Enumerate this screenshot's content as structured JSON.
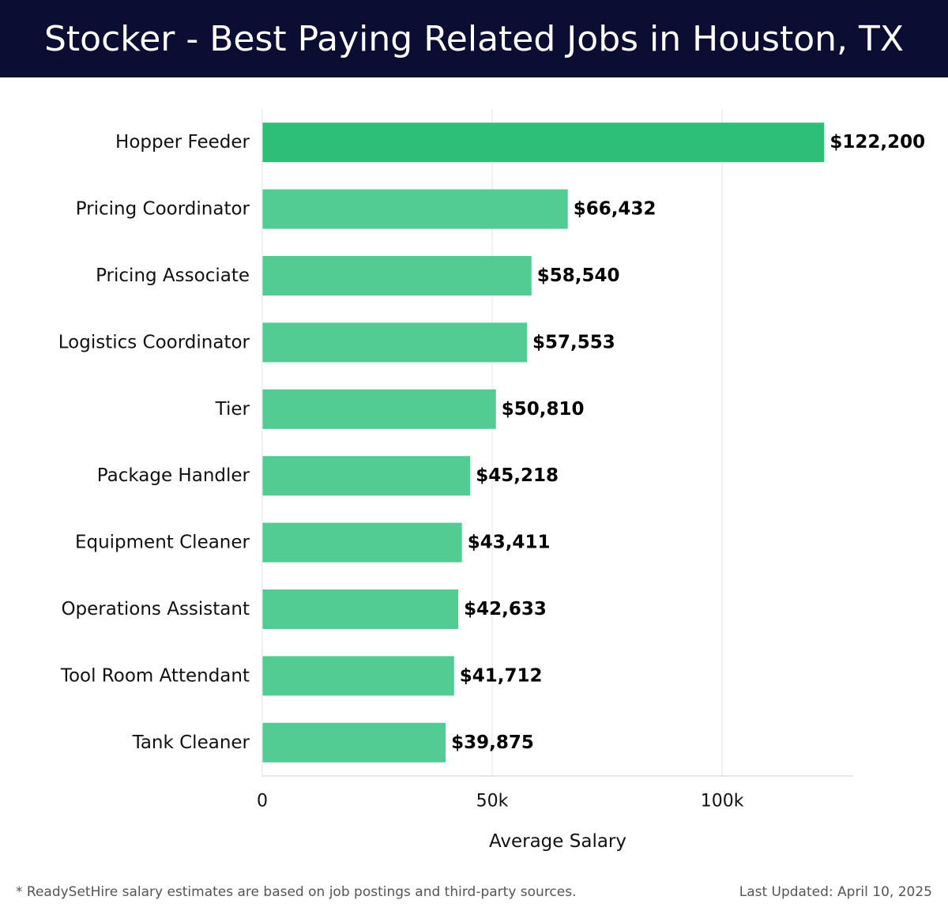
{
  "header": {
    "title": "Stocker - Best Paying Related Jobs in Houston, TX"
  },
  "chart_data": {
    "type": "bar",
    "orientation": "horizontal",
    "categories": [
      "Hopper Feeder",
      "Pricing Coordinator",
      "Pricing Associate",
      "Logistics Coordinator",
      "Tier",
      "Package Handler",
      "Equipment Cleaner",
      "Operations Assistant",
      "Tool Room Attendant",
      "Tank Cleaner"
    ],
    "values": [
      122200,
      66432,
      58540,
      57553,
      50810,
      45218,
      43411,
      42633,
      41712,
      39875
    ],
    "value_labels": [
      "$122,200",
      "$66,432",
      "$58,540",
      "$57,553",
      "$50,810",
      "$45,218",
      "$43,411",
      "$42,633",
      "$41,712",
      "$39,875"
    ],
    "xlabel": "Average Salary",
    "xticks": [
      {
        "value": 0,
        "label": "0"
      },
      {
        "value": 50000,
        "label": "50k"
      },
      {
        "value": 100000,
        "label": "100k"
      }
    ],
    "xlim": [
      0,
      128500
    ],
    "grid": "vertical",
    "colors": {
      "highlight": "#2dbe78",
      "bar": "#52cc93",
      "grid": "#e3e3e3",
      "axis": "#cccccc",
      "text": "#111111"
    }
  },
  "footer": {
    "footnote": "* ReadySetHire salary estimates are based on job postings and third-party sources.",
    "updated": "Last Updated: April 10, 2025"
  }
}
